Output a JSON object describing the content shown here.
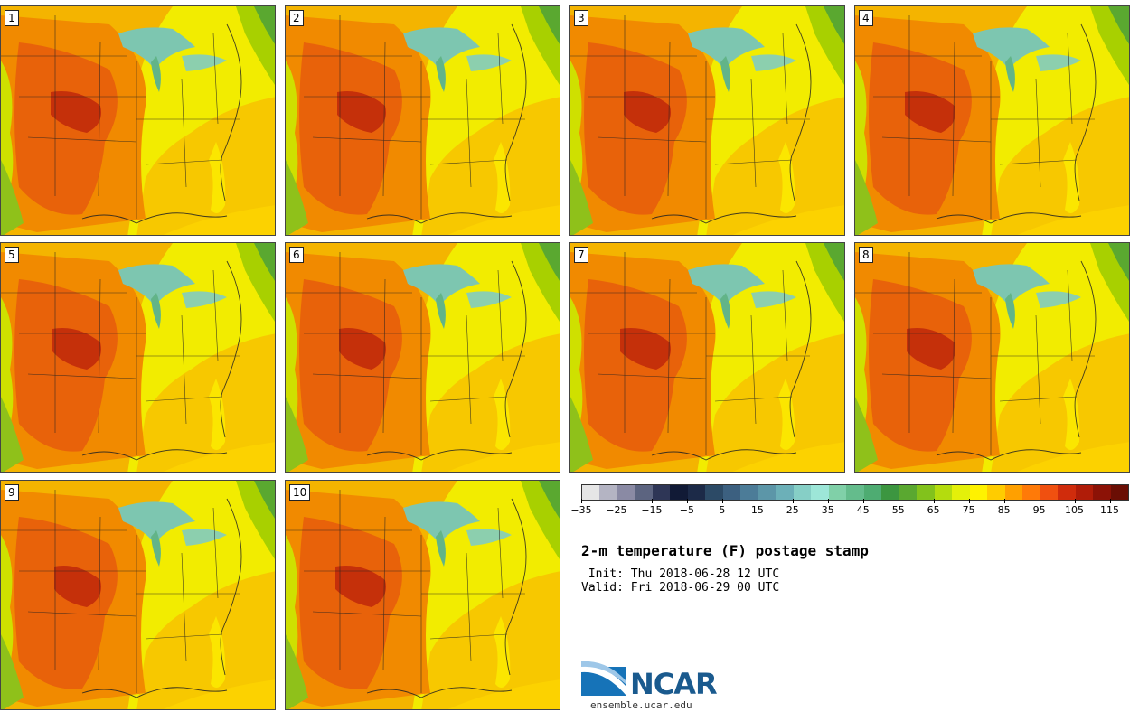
{
  "members": [
    "1",
    "2",
    "3",
    "4",
    "5",
    "6",
    "7",
    "8",
    "9",
    "10"
  ],
  "colorbar": {
    "colors": [
      "#e6e6e6",
      "#b4b4c3",
      "#8a8aa4",
      "#5c6480",
      "#2e3656",
      "#111a36",
      "#1c2a48",
      "#2c4a66",
      "#3c6080",
      "#4c7c98",
      "#5c96a8",
      "#6cb0b8",
      "#86cfc6",
      "#9de6d8",
      "#80d0a8",
      "#64bc8c",
      "#4eac72",
      "#3c9640",
      "#5aa830",
      "#82c21c",
      "#b4dc0e",
      "#e4f00a",
      "#fff200",
      "#ffcc00",
      "#ffa000",
      "#ff7a08",
      "#f05010",
      "#d02c0c",
      "#b01c08",
      "#8c1206",
      "#6a0e04"
    ],
    "ticks": [
      "−35",
      "−25",
      "−15",
      "−5",
      "5",
      "15",
      "25",
      "35",
      "45",
      "55",
      "65",
      "75",
      "85",
      "95",
      "105",
      "115"
    ]
  },
  "title": "2-m temperature (F) postage stamp",
  "init": " Init: Thu 2018-06-28 12 UTC",
  "valid": "Valid: Fri 2018-06-29 00 UTC",
  "logo": {
    "name": "NCAR",
    "site": "ensemble.ucar.edu"
  }
}
